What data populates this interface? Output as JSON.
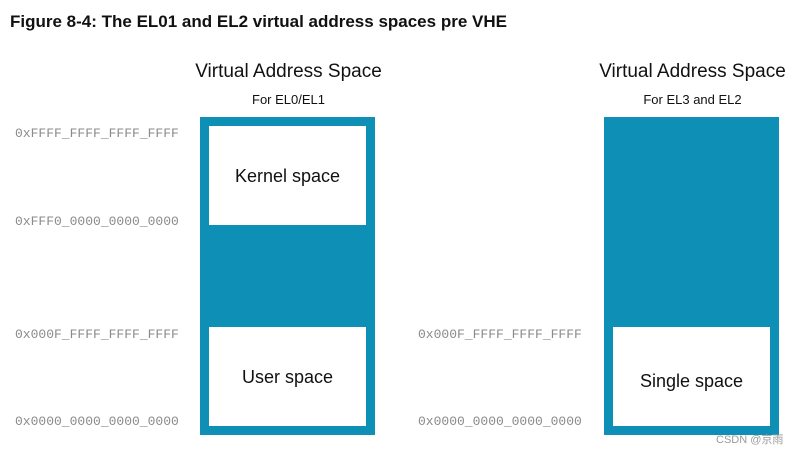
{
  "figure_title": "Figure 8-4: The EL01 and EL2 virtual address spaces pre VHE",
  "left_space": {
    "title": "Virtual Address Space",
    "subtitle": "For EL0/EL1",
    "addresses": {
      "top": "0xFFFF_FFFF_FFFF_FFFF",
      "kernel_bottom": "0xFFF0_0000_0000_0000",
      "user_top": "0x000F_FFFF_FFFF_FFFF",
      "bottom": "0x0000_0000_0000_0000"
    },
    "regions": {
      "kernel": "Kernel space",
      "user": "User space"
    }
  },
  "right_space": {
    "title": "Virtual Address Space",
    "subtitle": "For EL3 and EL2",
    "addresses": {
      "single_top": "0x000F_FFFF_FFFF_FFFF",
      "bottom": "0x0000_0000_0000_0000"
    },
    "regions": {
      "single": "Single space"
    }
  },
  "watermark": "CSDN @京雨",
  "colors": {
    "reserved_region": "#0d8fb6",
    "address_text": "#8a8a8a"
  }
}
